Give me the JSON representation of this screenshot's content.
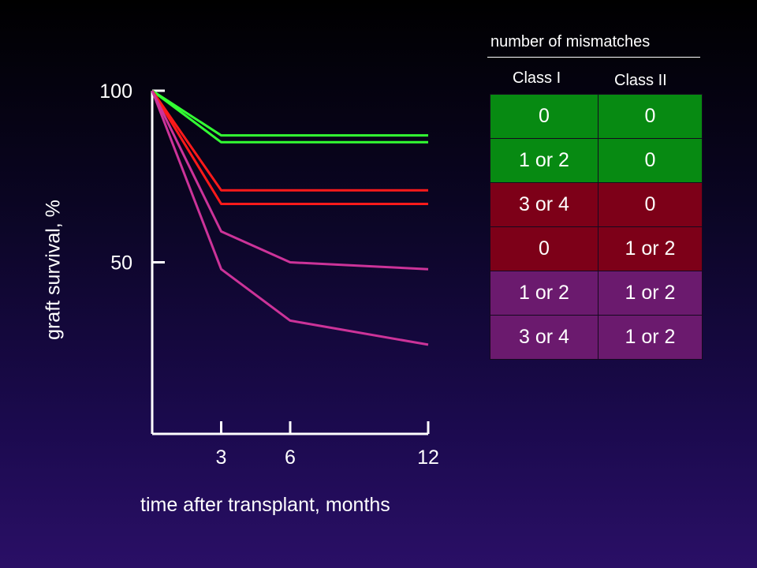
{
  "chart_data": {
    "type": "line",
    "xlabel": "time after transplant, months",
    "ylabel": "graft survival, %",
    "x_ticks": [
      3,
      6,
      12
    ],
    "y_ticks": [
      50,
      100
    ],
    "xlim": [
      0,
      12
    ],
    "ylim": [
      0,
      100
    ],
    "grid": false,
    "series": [
      {
        "color": "#33ff33",
        "points": [
          [
            0,
            100
          ],
          [
            3,
            87
          ],
          [
            6,
            87
          ],
          [
            12,
            87
          ]
        ]
      },
      {
        "color": "#33ff33",
        "points": [
          [
            0,
            100
          ],
          [
            3,
            85
          ],
          [
            6,
            85
          ],
          [
            12,
            85
          ]
        ]
      },
      {
        "color": "#ff1a1a",
        "points": [
          [
            0,
            100
          ],
          [
            3,
            71
          ],
          [
            6,
            71
          ],
          [
            12,
            71
          ]
        ]
      },
      {
        "color": "#ff1a1a",
        "points": [
          [
            0,
            100
          ],
          [
            3,
            67
          ],
          [
            6,
            67
          ],
          [
            12,
            67
          ]
        ]
      },
      {
        "color": "#cc3399",
        "points": [
          [
            0,
            100
          ],
          [
            3,
            59
          ],
          [
            6,
            50
          ],
          [
            12,
            48
          ]
        ]
      },
      {
        "color": "#cc3399",
        "points": [
          [
            0,
            100
          ],
          [
            3,
            48
          ],
          [
            6,
            33
          ],
          [
            12,
            26
          ]
        ]
      }
    ]
  },
  "table": {
    "header": "number of mismatches",
    "columns": [
      "Class I",
      "Class II"
    ],
    "rows": [
      {
        "class_i": "0",
        "class_ii": "0",
        "color": "#078a12"
      },
      {
        "class_i": "1 or 2",
        "class_ii": "0",
        "color": "#078a12"
      },
      {
        "class_i": "3 or 4",
        "class_ii": "0",
        "color": "#7d0018"
      },
      {
        "class_i": "0",
        "class_ii": "1 or 2",
        "color": "#7d0018"
      },
      {
        "class_i": "1 or 2",
        "class_ii": "1 or 2",
        "color": "#6b1a6e"
      },
      {
        "class_i": "3 or 4",
        "class_ii": "1 or 2",
        "color": "#6b1a6e"
      }
    ]
  }
}
